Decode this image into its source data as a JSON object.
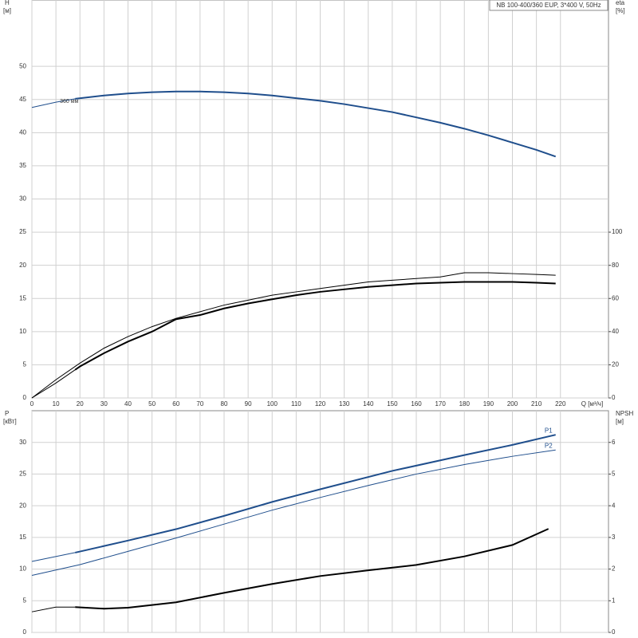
{
  "chart_data": [
    {
      "type": "line",
      "title": "NB 100-400/360 EUP, 3*400 V, 50Hz",
      "ylabel": "H",
      "yunit": "[м]",
      "y2label": "eta",
      "y2unit": "[%]",
      "xlabel": "Q [м³/ч]",
      "annotations": [
        "360 мм"
      ],
      "xlim": [
        0,
        240
      ],
      "xticks": [
        0,
        10,
        20,
        30,
        40,
        50,
        60,
        70,
        80,
        90,
        100,
        110,
        120,
        130,
        140,
        150,
        160,
        170,
        180,
        190,
        200,
        210,
        220
      ],
      "ylim": [
        0,
        60
      ],
      "yticks": [
        0,
        5,
        10,
        15,
        20,
        25,
        30,
        35,
        40,
        45,
        50
      ],
      "y2lim": [
        0,
        240
      ],
      "y2ticks": [
        0,
        20,
        40,
        60,
        80,
        100
      ],
      "grid": true,
      "series": [
        {
          "color": "#1f4e8c",
          "width": 1,
          "x": [
            0,
            10,
            18
          ],
          "values": [
            43.8,
            44.6,
            45.1
          ]
        },
        {
          "color": "#1f4e8c",
          "width": 2,
          "x": [
            18,
            30,
            40,
            50,
            60,
            70,
            80,
            90,
            100,
            110,
            120,
            130,
            140,
            150,
            160,
            170,
            180,
            190,
            200,
            210,
            218
          ],
          "values": [
            45.1,
            45.6,
            45.9,
            46.1,
            46.2,
            46.2,
            46.1,
            45.9,
            45.6,
            45.2,
            44.8,
            44.3,
            43.7,
            43.1,
            42.3,
            41.5,
            40.6,
            39.6,
            38.5,
            37.4,
            36.4
          ]
        },
        {
          "color": "#000000",
          "width": 1,
          "axis": "y2",
          "x": [
            0,
            10,
            20,
            30,
            40,
            50,
            60,
            70,
            80,
            90,
            100,
            110,
            120,
            130,
            140,
            150,
            160,
            170,
            180,
            190,
            200,
            210,
            218
          ],
          "values": [
            0,
            11,
            21,
            30,
            37,
            43,
            48,
            52,
            56,
            59,
            62,
            64,
            66,
            68,
            70,
            71,
            72,
            73,
            75.5,
            75.5,
            75,
            74.5,
            74
          ]
        },
        {
          "color": "#000000",
          "width": 1,
          "axis": "y2",
          "x": [
            0,
            10,
            18
          ],
          "values": [
            0,
            9,
            17
          ]
        },
        {
          "color": "#000000",
          "width": 2,
          "axis": "y2",
          "x": [
            18,
            20,
            30,
            40,
            50,
            60,
            70,
            80,
            90,
            100,
            110,
            120,
            130,
            140,
            150,
            160,
            170,
            180,
            190,
            200,
            210,
            218
          ],
          "values": [
            17,
            19,
            27,
            34,
            40,
            47.5,
            50,
            54,
            57,
            59.5,
            62,
            64,
            65.5,
            67,
            68,
            69,
            69.5,
            70,
            70,
            70,
            69.5,
            69
          ]
        }
      ]
    },
    {
      "type": "line",
      "ylabel": "P",
      "yunit": "[кВт]",
      "y2label": "NPSH",
      "y2unit": "[м]",
      "xlim": [
        0,
        240
      ],
      "xticks": [
        0,
        10,
        20,
        30,
        40,
        50,
        60,
        70,
        80,
        90,
        100,
        110,
        120,
        130,
        140,
        150,
        160,
        170,
        180,
        190,
        200,
        210,
        220
      ],
      "ylim": [
        0,
        35
      ],
      "yticks": [
        0,
        5,
        10,
        15,
        20,
        25,
        30
      ],
      "y2lim": [
        0,
        7
      ],
      "y2ticks": [
        0,
        1,
        2,
        3,
        4,
        5,
        6
      ],
      "grid": true,
      "series": [
        {
          "color": "#1f4e8c",
          "width": 1,
          "x": [
            0,
            18
          ],
          "values": [
            11.2,
            12.6
          ]
        },
        {
          "name": "P1",
          "color": "#1f4e8c",
          "width": 2,
          "x": [
            18,
            40,
            60,
            80,
            100,
            120,
            150,
            180,
            200,
            218
          ],
          "values": [
            12.6,
            14.5,
            16.3,
            18.4,
            20.6,
            22.6,
            25.5,
            28.0,
            29.6,
            31.2
          ]
        },
        {
          "name": "P2",
          "color": "#1f4e8c",
          "width": 1,
          "x": [
            0,
            20,
            40,
            60,
            80,
            100,
            120,
            140,
            160,
            180,
            200,
            218
          ],
          "values": [
            9.0,
            10.7,
            12.8,
            14.9,
            17.1,
            19.3,
            21.3,
            23.2,
            25.0,
            26.5,
            27.8,
            28.8
          ]
        },
        {
          "color": "#000000",
          "width": 1,
          "axis": "y2",
          "x": [
            0,
            10,
            18
          ],
          "values": [
            0.65,
            0.8,
            0.8
          ]
        },
        {
          "color": "#000000",
          "width": 2,
          "axis": "y2",
          "x": [
            18,
            30,
            40,
            60,
            80,
            100,
            120,
            140,
            160,
            180,
            200,
            215
          ],
          "values": [
            0.8,
            0.75,
            0.78,
            0.95,
            1.25,
            1.53,
            1.78,
            1.96,
            2.13,
            2.4,
            2.76,
            3.27
          ]
        }
      ]
    }
  ]
}
